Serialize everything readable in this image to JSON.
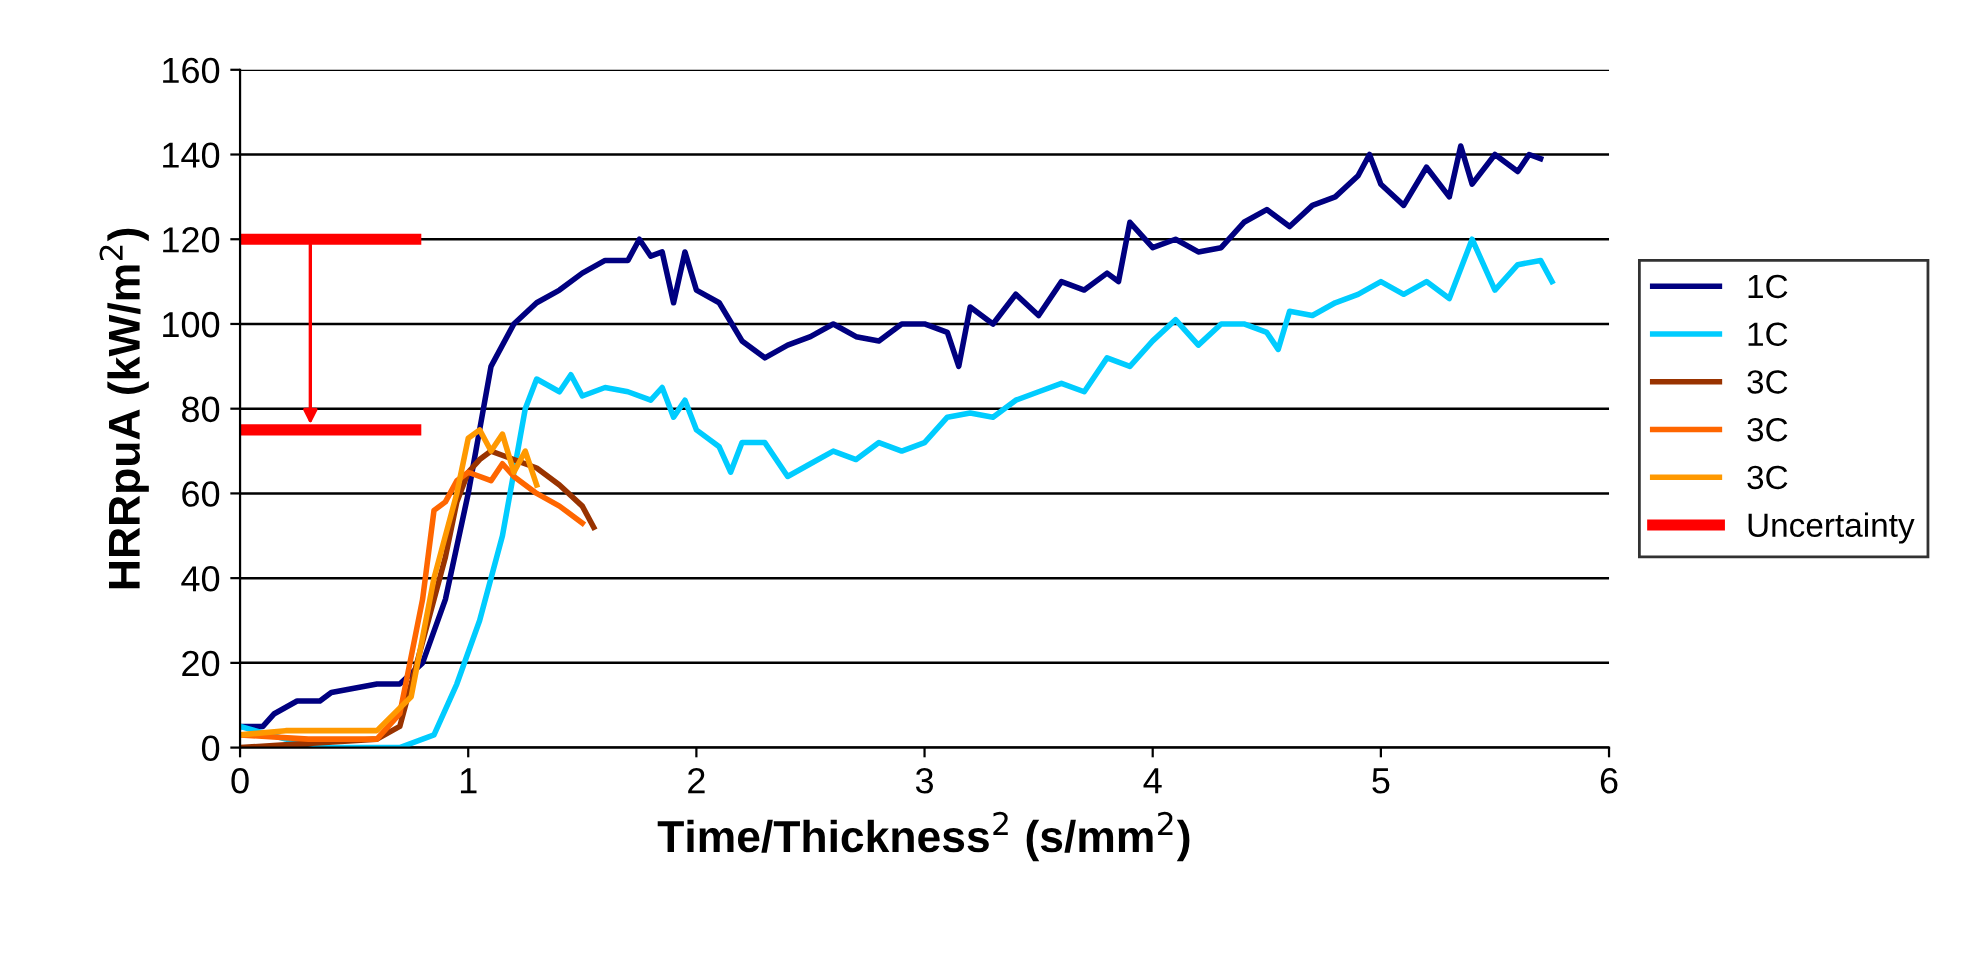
{
  "chart_data": {
    "type": "line",
    "xlabel": "Time/Thickness$^{2}$ (s/mm$^{2}$)",
    "ylabel": "HRRpuA (kW/m$^{2}$)",
    "xlim": [
      0,
      6
    ],
    "xticks": [
      0,
      1,
      2,
      3,
      4,
      5,
      6
    ],
    "ylim": [
      0,
      160
    ],
    "yticks": [
      0,
      20,
      40,
      60,
      80,
      100,
      120,
      140,
      160
    ],
    "grid": "y",
    "legend": "right",
    "marker": "none",
    "line_style": "solid",
    "series": [
      {
        "name": "1C",
        "color": "#000080",
        "x": [
          0,
          0.1,
          0.15,
          0.25,
          0.35,
          0.4,
          0.5,
          0.6,
          0.7,
          0.8,
          0.9,
          1.0,
          1.05,
          1.1,
          1.15,
          1.2,
          1.3,
          1.4,
          1.5,
          1.6,
          1.7,
          1.75,
          1.8,
          1.85,
          1.9,
          1.95,
          2.0,
          2.1,
          2.2,
          2.3,
          2.4,
          2.5,
          2.6,
          2.7,
          2.8,
          2.9,
          3.0,
          3.1,
          3.15,
          3.2,
          3.3,
          3.4,
          3.5,
          3.6,
          3.7,
          3.8,
          3.85,
          3.9,
          4.0,
          4.1,
          4.2,
          4.3,
          4.4,
          4.5,
          4.6,
          4.7,
          4.8,
          4.9,
          4.95,
          5.0,
          5.1,
          5.2,
          5.3,
          5.35,
          5.4,
          5.5,
          5.6,
          5.65,
          5.7
        ],
        "values": [
          5,
          5,
          8,
          11,
          11,
          13,
          14,
          15,
          15,
          20,
          35,
          60,
          75,
          90,
          95,
          100,
          105,
          108,
          112,
          115,
          115,
          120,
          116,
          117,
          105,
          117,
          108,
          105,
          96,
          92,
          95,
          97,
          100,
          97,
          96,
          100,
          100,
          98,
          90,
          104,
          100,
          107,
          102,
          110,
          108,
          112,
          110,
          124,
          118,
          120,
          117,
          118,
          124,
          127,
          123,
          128,
          130,
          135,
          140,
          133,
          128,
          137,
          130,
          142,
          133,
          140,
          136,
          140,
          139
        ]
      },
      {
        "name": "1C",
        "color": "#00ccff",
        "x": [
          0,
          0.2,
          0.4,
          0.7,
          0.85,
          0.95,
          1.05,
          1.15,
          1.2,
          1.25,
          1.3,
          1.4,
          1.45,
          1.5,
          1.6,
          1.7,
          1.8,
          1.85,
          1.9,
          1.95,
          2.0,
          2.1,
          2.15,
          2.2,
          2.3,
          2.4,
          2.5,
          2.6,
          2.7,
          2.8,
          2.9,
          3.0,
          3.1,
          3.2,
          3.3,
          3.4,
          3.5,
          3.6,
          3.7,
          3.8,
          3.9,
          4.0,
          4.1,
          4.2,
          4.3,
          4.4,
          4.5,
          4.55,
          4.6,
          4.7,
          4.8,
          4.9,
          5.0,
          5.1,
          5.2,
          5.3,
          5.4,
          5.5,
          5.6,
          5.7,
          5.75
        ],
        "values": [
          5,
          2,
          0,
          0,
          3,
          15,
          30,
          50,
          65,
          80,
          87,
          84,
          88,
          83,
          85,
          84,
          82,
          85,
          78,
          82,
          75,
          71,
          65,
          72,
          72,
          64,
          67,
          70,
          68,
          72,
          70,
          72,
          78,
          79,
          78,
          82,
          84,
          86,
          84,
          92,
          90,
          96,
          101,
          95,
          100,
          100,
          98,
          94,
          103,
          102,
          105,
          107,
          110,
          107,
          110,
          106,
          120,
          108,
          114,
          115,
          110
        ]
      },
      {
        "name": "3C",
        "color": "#993300",
        "x": [
          0,
          0.3,
          0.6,
          0.7,
          0.8,
          0.9,
          0.95,
          1.0,
          1.05,
          1.1,
          1.2,
          1.3,
          1.4,
          1.5,
          1.55
        ],
        "values": [
          0,
          1,
          2,
          5,
          25,
          45,
          58,
          65,
          68,
          70,
          68,
          66,
          62,
          57,
          52
        ]
      },
      {
        "name": "3C",
        "color": "#ff6600",
        "x": [
          0,
          0.3,
          0.6,
          0.7,
          0.8,
          0.85,
          0.9,
          0.95,
          1.0,
          1.1,
          1.15,
          1.2,
          1.3,
          1.4,
          1.5
        ],
        "values": [
          3,
          2,
          2,
          8,
          35,
          56,
          58,
          63,
          65,
          63,
          67,
          64,
          60,
          57,
          53
        ]
      },
      {
        "name": "3C",
        "color": "#ff9900",
        "x": [
          0,
          0.2,
          0.6,
          0.75,
          0.85,
          0.95,
          1.0,
          1.05,
          1.1,
          1.15,
          1.2,
          1.25,
          1.3
        ],
        "values": [
          3,
          4,
          4,
          12,
          40,
          60,
          73,
          75,
          70,
          74,
          65,
          70,
          62
        ]
      },
      {
        "name": "Uncertainty",
        "color": "#ff0000",
        "x": [
          0,
          0.77
        ],
        "values": [
          120,
          120
        ]
      },
      {
        "color": "#ff0000",
        "x": [
          0,
          0.77
        ],
        "values": [
          75,
          75
        ]
      }
    ]
  }
}
